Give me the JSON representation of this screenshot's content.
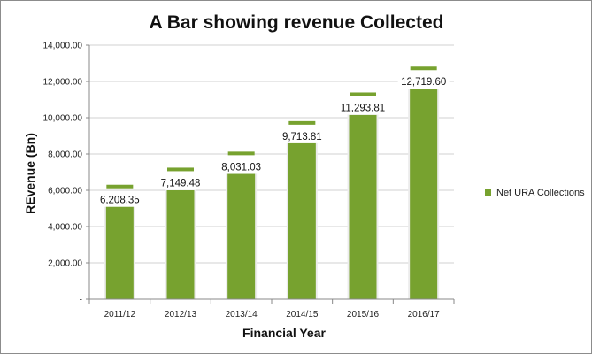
{
  "chart_data": {
    "type": "bar",
    "title": "A Bar showing revenue Collected",
    "xlabel": "Financial Year",
    "ylabel": "REvenue (Bn)",
    "categories": [
      "2011/12",
      "2012/13",
      "2013/14",
      "2014/15",
      "2015/16",
      "2016/17"
    ],
    "series": [
      {
        "name": "Net URA Collections",
        "values": [
          5100,
          6000,
          6900,
          8600,
          10150,
          11600
        ],
        "labels": [
          "6,208.35",
          "7,149.48",
          "8,031.03",
          "9,713.81",
          "11,293.81",
          "12,719.60"
        ],
        "marker_values": [
          6208.35,
          7149.48,
          8031.03,
          9713.81,
          11293.81,
          12719.6
        ]
      }
    ],
    "ylim": [
      0,
      14000
    ],
    "yticks": [
      0,
      2000,
      4000,
      6000,
      8000,
      10000,
      12000,
      14000
    ],
    "ytick_labels": [
      "-",
      "2,000.00",
      "4,000.00",
      "6,000.00",
      "8,000.00",
      "10,000.00",
      "12,000.00",
      "14,000.00"
    ],
    "grid": true,
    "legend": "right",
    "bar_color": "#77a22f"
  }
}
